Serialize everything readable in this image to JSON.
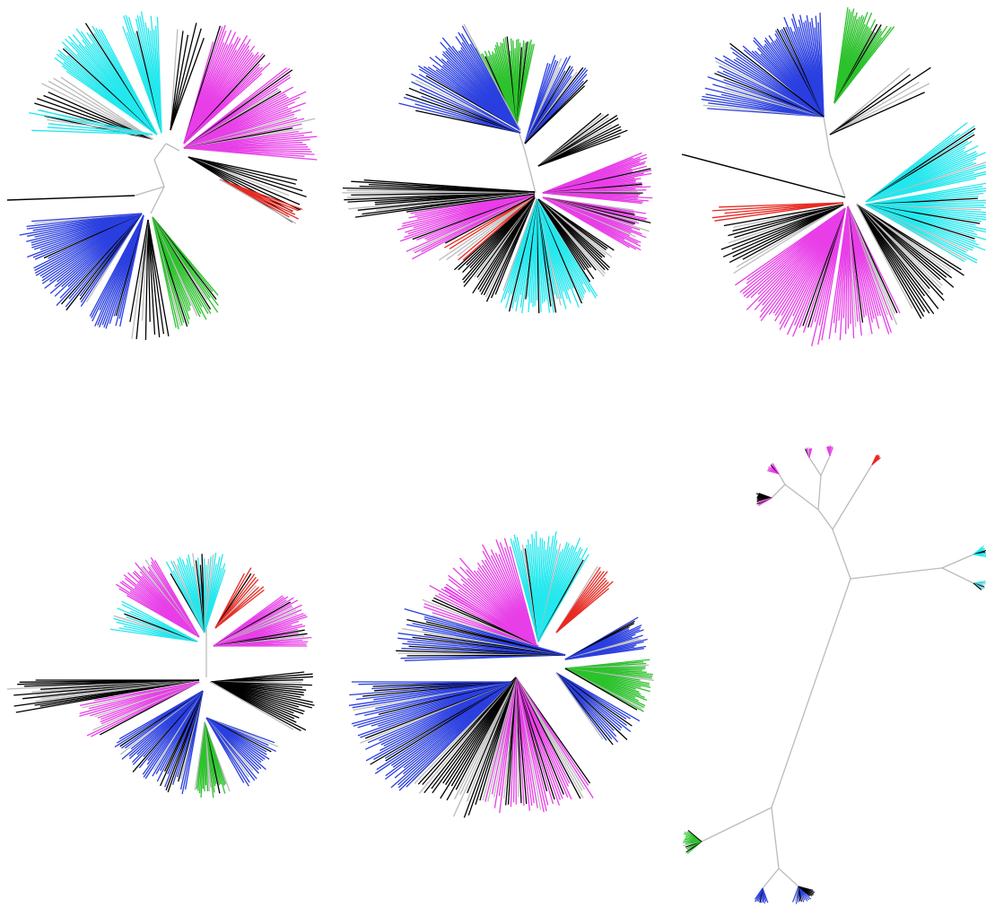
{
  "figure": {
    "type": "unrooted-phylogenetic-trees",
    "panel_count": 6,
    "background": "#ffffff",
    "edge_color": "#bbbbbb",
    "clade_colors": {
      "cyan": "#22e8ee",
      "magenta": "#e83ee8",
      "blue": "#2a3fe0",
      "green": "#2cc22c",
      "red": "#e82a22",
      "black": "#000000",
      "gray": "#bbbbbb"
    },
    "panels": [
      {
        "name": "tree-panel-1",
        "style": "radial",
        "clades": [
          {
            "color": "cyan"
          },
          {
            "color": "black"
          },
          {
            "color": "magenta"
          },
          {
            "color": "red"
          },
          {
            "color": "green"
          },
          {
            "color": "blue"
          },
          {
            "color": "black"
          }
        ]
      },
      {
        "name": "tree-panel-2",
        "style": "radial",
        "clades": [
          {
            "color": "green"
          },
          {
            "color": "blue"
          },
          {
            "color": "magenta"
          },
          {
            "color": "cyan"
          },
          {
            "color": "red"
          },
          {
            "color": "black"
          }
        ]
      },
      {
        "name": "tree-panel-3",
        "style": "radial",
        "clades": [
          {
            "color": "green"
          },
          {
            "color": "blue"
          },
          {
            "color": "cyan"
          },
          {
            "color": "magenta"
          },
          {
            "color": "red"
          },
          {
            "color": "black"
          }
        ]
      },
      {
        "name": "tree-panel-4",
        "style": "radial",
        "clades": [
          {
            "color": "cyan"
          },
          {
            "color": "magenta"
          },
          {
            "color": "red"
          },
          {
            "color": "blue"
          },
          {
            "color": "green"
          },
          {
            "color": "black"
          }
        ]
      },
      {
        "name": "tree-panel-5",
        "style": "radial",
        "clades": [
          {
            "color": "cyan"
          },
          {
            "color": "magenta"
          },
          {
            "color": "red"
          },
          {
            "color": "blue"
          },
          {
            "color": "green"
          },
          {
            "color": "black"
          }
        ]
      },
      {
        "name": "tree-panel-6",
        "style": "unrooted-branching",
        "clades": [
          {
            "color": "magenta"
          },
          {
            "color": "red"
          },
          {
            "color": "cyan"
          },
          {
            "color": "green"
          },
          {
            "color": "blue"
          },
          {
            "color": "black"
          }
        ]
      }
    ]
  }
}
